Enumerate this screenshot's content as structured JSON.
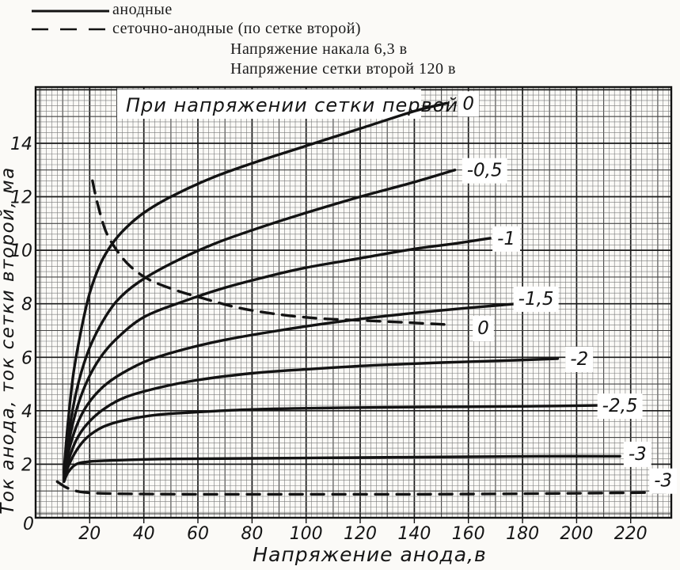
{
  "legend": {
    "anode_label": "анодные",
    "grid_anode_label": "сеточно-анодные (по сетке второй)",
    "heater_line": "Напряжение накала 6,3 в",
    "screen_line": "Напряжение сетки второй 120 в"
  },
  "colors": {
    "ink": "#131313",
    "paper": "#fbfaf7",
    "patch": "#ffffff",
    "grid_minor": "#7a7a7a",
    "grid_medium": "#454545",
    "grid_major": "#1a1a1a"
  },
  "chart_data": {
    "type": "line",
    "title": "При напряжении сетки первой,в",
    "xlabel": "Напряжение анода,в",
    "ylabel": "Ток анода, ток сетки второй, ма",
    "origin_label": "0",
    "xlim": [
      0,
      235
    ],
    "ylim": [
      0,
      16.1
    ],
    "x_ticks": [
      0,
      20,
      40,
      60,
      80,
      100,
      120,
      140,
      160,
      180,
      200,
      220
    ],
    "y_ticks": [
      0,
      2,
      4,
      6,
      8,
      10,
      12,
      14
    ],
    "grid": {
      "minor_x": 2,
      "minor_y": 0.2,
      "medium_x": 10,
      "medium_y": 1,
      "major_x": 20,
      "major_y": 2
    },
    "legend_note": "solid = anode current, dashed = screen-grid current",
    "series": [
      {
        "group": "анодные",
        "style": "solid",
        "grid1_voltage": 0,
        "label": "0",
        "label_at": [
          160,
          15.5
        ],
        "points": [
          [
            10.5,
            1.8
          ],
          [
            12,
            3.6
          ],
          [
            14,
            5.4
          ],
          [
            17,
            7.1
          ],
          [
            20,
            8.4
          ],
          [
            24,
            9.5
          ],
          [
            28,
            10.2
          ],
          [
            33,
            10.8
          ],
          [
            40,
            11.4
          ],
          [
            50,
            12.0
          ],
          [
            65,
            12.7
          ],
          [
            80,
            13.25
          ],
          [
            100,
            13.9
          ],
          [
            120,
            14.55
          ],
          [
            140,
            15.2
          ],
          [
            152,
            15.5
          ]
        ]
      },
      {
        "group": "анодные",
        "style": "solid",
        "grid1_voltage": -0.5,
        "label": "-0,5",
        "label_at": [
          166,
          13.0
        ],
        "points": [
          [
            10.5,
            1.7
          ],
          [
            12,
            3.0
          ],
          [
            15,
            4.7
          ],
          [
            19,
            6.1
          ],
          [
            24,
            7.2
          ],
          [
            30,
            8.1
          ],
          [
            38,
            8.8
          ],
          [
            50,
            9.5
          ],
          [
            65,
            10.2
          ],
          [
            80,
            10.75
          ],
          [
            100,
            11.4
          ],
          [
            120,
            12.0
          ],
          [
            140,
            12.55
          ],
          [
            155,
            13.0
          ]
        ]
      },
      {
        "group": "анодные",
        "style": "solid",
        "grid1_voltage": -1,
        "label": "-1",
        "label_at": [
          174,
          10.45
        ],
        "points": [
          [
            10.5,
            1.6
          ],
          [
            12,
            2.7
          ],
          [
            15,
            4.0
          ],
          [
            19,
            5.1
          ],
          [
            24,
            6.0
          ],
          [
            30,
            6.7
          ],
          [
            40,
            7.5
          ],
          [
            55,
            8.1
          ],
          [
            70,
            8.6
          ],
          [
            85,
            9.0
          ],
          [
            100,
            9.35
          ],
          [
            120,
            9.7
          ],
          [
            140,
            10.05
          ],
          [
            155,
            10.25
          ],
          [
            168,
            10.45
          ]
        ]
      },
      {
        "group": "анодные",
        "style": "solid",
        "grid1_voltage": -1.5,
        "label": "-1,5",
        "label_at": [
          185,
          8.2
        ],
        "points": [
          [
            10.5,
            1.5
          ],
          [
            12,
            2.4
          ],
          [
            15,
            3.4
          ],
          [
            19,
            4.2
          ],
          [
            25,
            4.9
          ],
          [
            32,
            5.4
          ],
          [
            42,
            5.9
          ],
          [
            55,
            6.3
          ],
          [
            70,
            6.65
          ],
          [
            90,
            7.0
          ],
          [
            110,
            7.3
          ],
          [
            130,
            7.55
          ],
          [
            155,
            7.8
          ],
          [
            178,
            8.0
          ]
        ]
      },
      {
        "group": "анодные",
        "style": "solid",
        "grid1_voltage": -2,
        "label": "-2",
        "label_at": [
          201,
          5.95
        ],
        "points": [
          [
            10.5,
            1.45
          ],
          [
            12,
            2.1
          ],
          [
            15,
            2.9
          ],
          [
            19,
            3.5
          ],
          [
            25,
            4.05
          ],
          [
            33,
            4.5
          ],
          [
            45,
            4.85
          ],
          [
            60,
            5.15
          ],
          [
            80,
            5.4
          ],
          [
            100,
            5.55
          ],
          [
            125,
            5.7
          ],
          [
            150,
            5.8
          ],
          [
            175,
            5.88
          ],
          [
            193,
            5.95
          ]
        ]
      },
      {
        "group": "анодные",
        "style": "solid",
        "grid1_voltage": -2.5,
        "label": "-2,5",
        "label_at": [
          216,
          4.2
        ],
        "points": [
          [
            10.5,
            1.4
          ],
          [
            12,
            1.9
          ],
          [
            15,
            2.5
          ],
          [
            19,
            3.0
          ],
          [
            25,
            3.4
          ],
          [
            33,
            3.65
          ],
          [
            45,
            3.85
          ],
          [
            60,
            3.95
          ],
          [
            80,
            4.05
          ],
          [
            105,
            4.1
          ],
          [
            130,
            4.13
          ],
          [
            160,
            4.15
          ],
          [
            185,
            4.17
          ],
          [
            208,
            4.2
          ]
        ]
      },
      {
        "group": "анодные",
        "style": "solid",
        "grid1_voltage": -3,
        "label": "-3",
        "label_at": [
          222.5,
          2.4
        ],
        "points": [
          [
            10.5,
            1.35
          ],
          [
            12,
            1.7
          ],
          [
            15,
            2.0
          ],
          [
            20,
            2.1
          ],
          [
            30,
            2.15
          ],
          [
            50,
            2.2
          ],
          [
            80,
            2.22
          ],
          [
            120,
            2.25
          ],
          [
            160,
            2.28
          ],
          [
            190,
            2.3
          ],
          [
            216,
            2.3
          ]
        ]
      },
      {
        "group": "сеточно-анодные (по сетке второй)",
        "style": "dashed",
        "grid1_voltage": 0,
        "label": "0",
        "label_at": [
          165.5,
          7.1
        ],
        "points": [
          [
            21,
            12.6
          ],
          [
            23,
            11.7
          ],
          [
            26,
            10.7
          ],
          [
            30,
            10.0
          ],
          [
            35,
            9.4
          ],
          [
            42,
            8.9
          ],
          [
            52,
            8.5
          ],
          [
            62,
            8.2
          ],
          [
            75,
            7.85
          ],
          [
            90,
            7.6
          ],
          [
            105,
            7.45
          ],
          [
            120,
            7.38
          ],
          [
            137,
            7.3
          ],
          [
            152,
            7.22
          ]
        ]
      },
      {
        "group": "сеточно-анодные (по сетке второй)",
        "style": "dashed",
        "grid1_voltage": -3,
        "label": "-3",
        "label_at": [
          232,
          1.4
        ],
        "points": [
          [
            8,
            1.35
          ],
          [
            12,
            1.1
          ],
          [
            18,
            0.95
          ],
          [
            30,
            0.9
          ],
          [
            60,
            0.88
          ],
          [
            100,
            0.88
          ],
          [
            140,
            0.88
          ],
          [
            180,
            0.9
          ],
          [
            215,
            0.93
          ],
          [
            233,
            0.95
          ]
        ]
      }
    ]
  }
}
